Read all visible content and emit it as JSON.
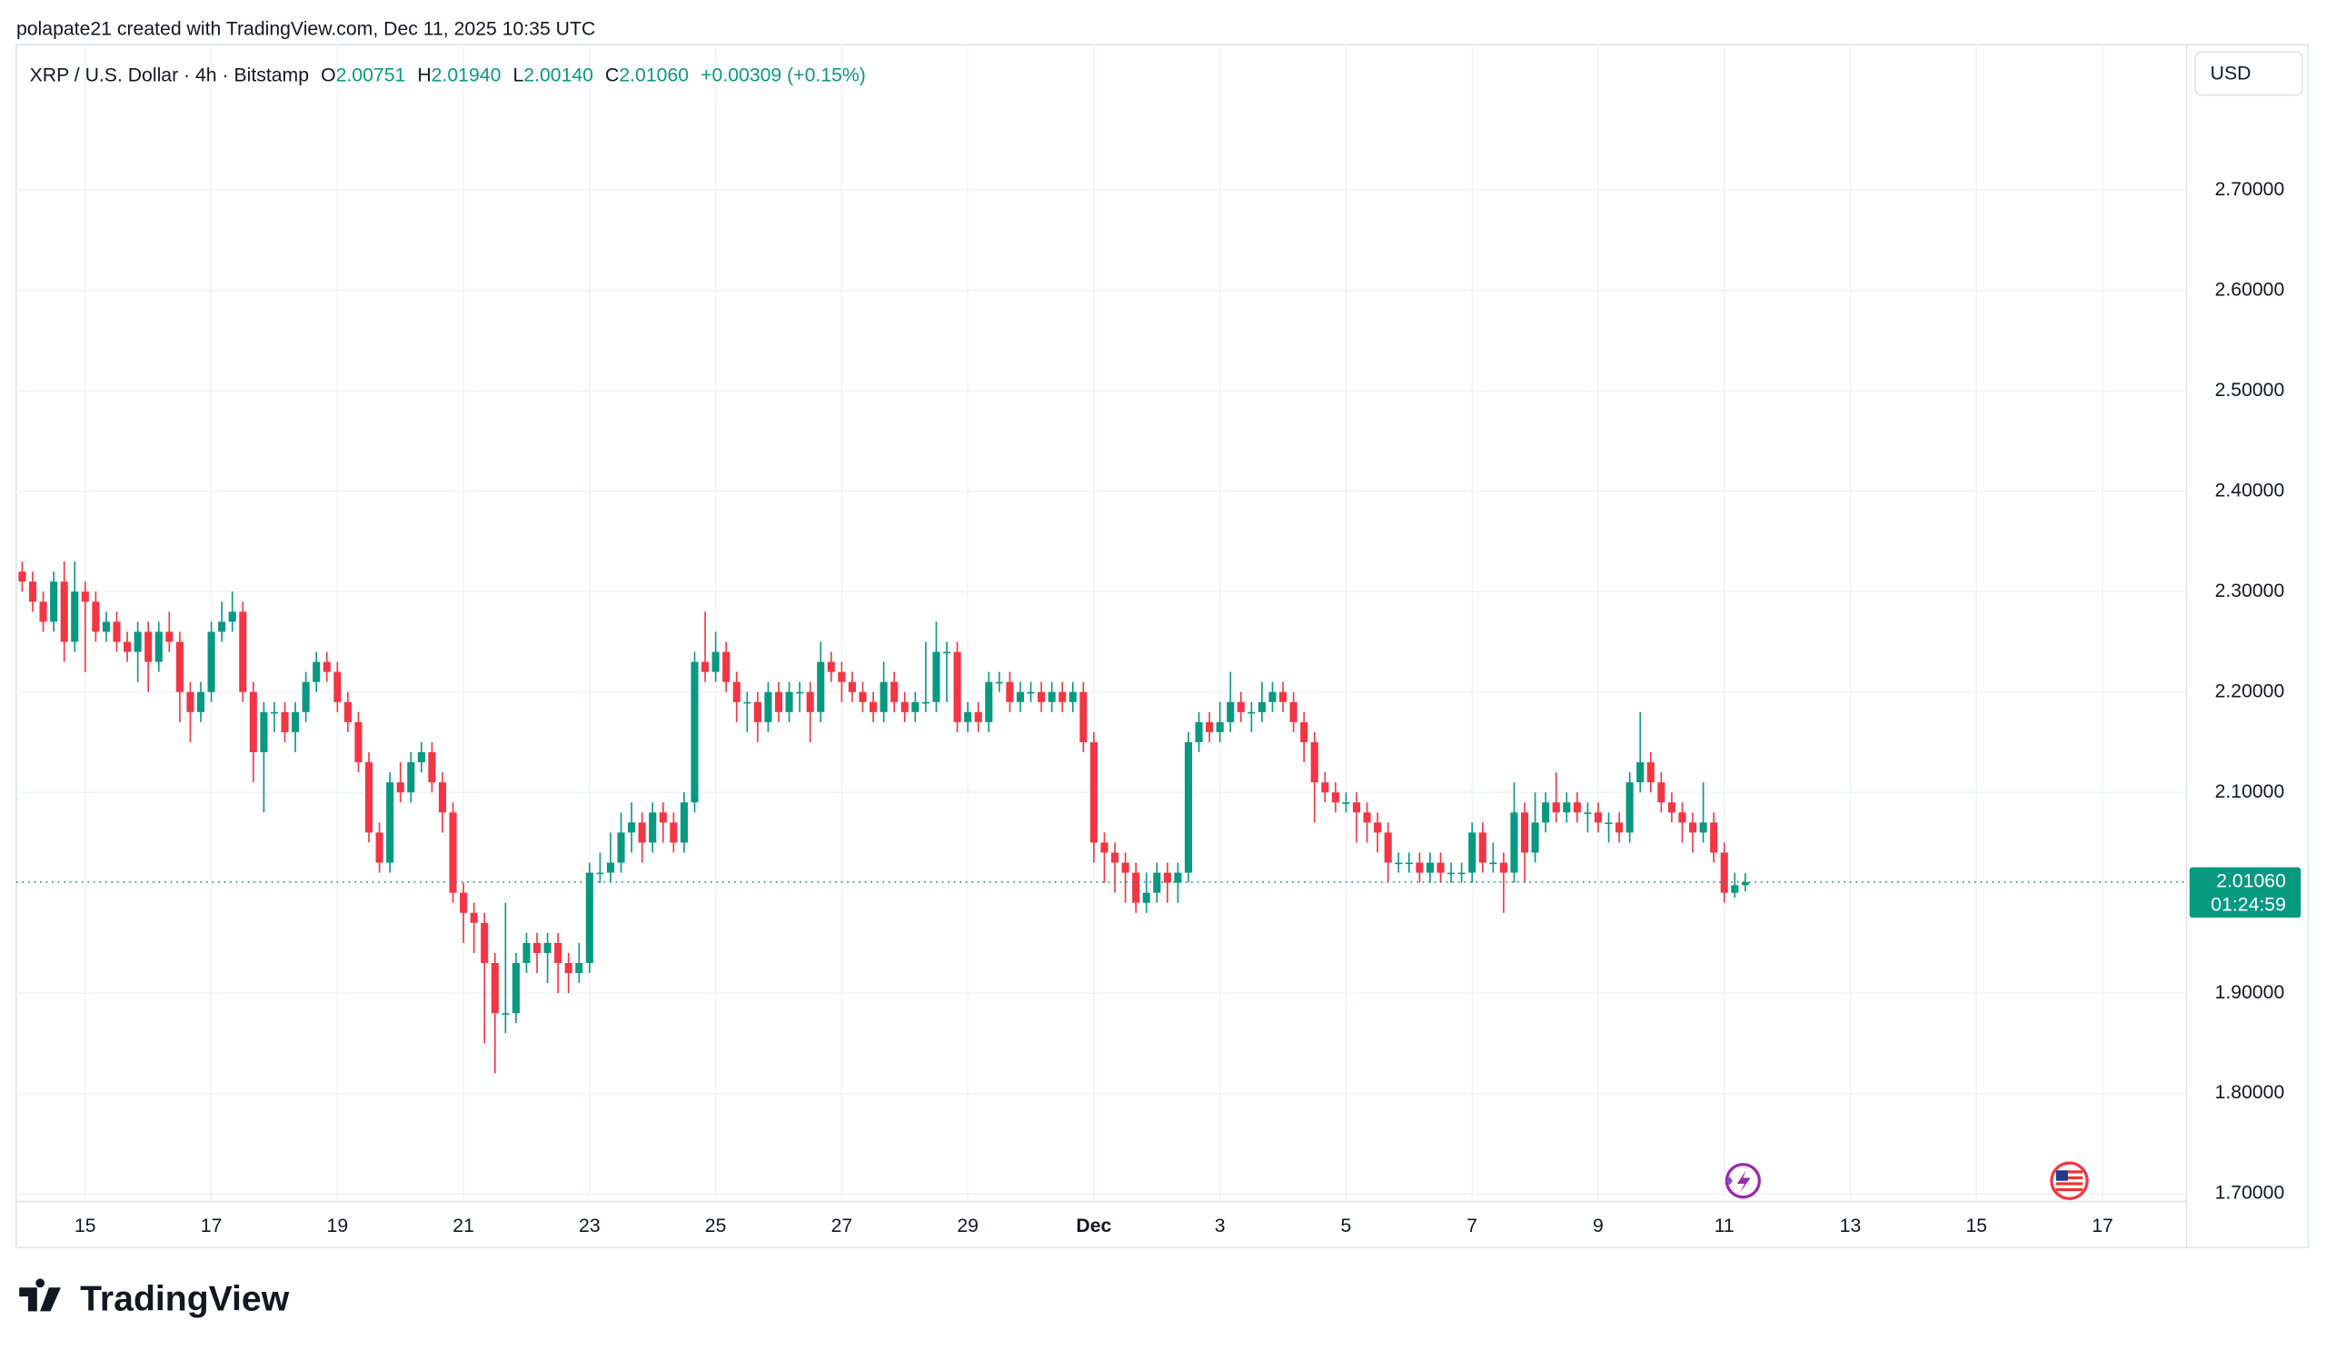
{
  "header": {
    "attribution": "polapate21 created with TradingView.com, Dec 11, 2025 10:35 UTC",
    "logo": "TradingView"
  },
  "chart_data": {
    "type": "candlestick",
    "title": "XRP / U.S. Dollar · 4h · Bitstamp",
    "legend": {
      "open_label": "O",
      "open": "2.00751",
      "high_label": "H",
      "high": "2.01940",
      "low_label": "L",
      "low": "2.00140",
      "close_label": "C",
      "close": "2.01060",
      "change": "+0.00309 (+0.15%)"
    },
    "currency": "USD",
    "open": [
      2.32,
      2.31,
      2.29,
      2.27,
      2.31,
      2.25,
      2.3,
      2.29,
      2.26,
      2.27,
      2.25,
      2.24,
      2.26,
      2.23,
      2.26,
      2.25,
      2.2,
      2.18,
      2.2,
      2.26,
      2.27,
      2.28,
      2.2,
      2.14,
      2.18,
      2.18,
      2.16,
      2.18,
      2.21,
      2.23,
      2.22,
      2.19,
      2.17,
      2.13,
      2.06,
      2.03,
      2.11,
      2.1,
      2.13,
      2.14,
      2.11,
      2.08,
      2.0,
      1.98,
      1.97,
      1.93,
      1.88,
      1.88,
      1.93,
      1.95,
      1.94,
      1.95,
      1.93,
      1.92,
      1.93,
      2.02,
      2.02,
      2.03,
      2.06,
      2.07,
      2.05,
      2.08,
      2.07,
      2.05,
      2.09,
      2.23,
      2.22,
      2.24,
      2.21,
      2.19,
      2.19,
      2.17,
      2.2,
      2.18,
      2.2,
      2.2,
      2.18,
      2.23,
      2.22,
      2.21,
      2.2,
      2.19,
      2.18,
      2.21,
      2.19,
      2.18,
      2.19,
      2.19,
      2.24,
      2.24,
      2.17,
      2.18,
      2.17,
      2.21,
      2.21,
      2.19,
      2.2,
      2.2,
      2.19,
      2.2,
      2.19,
      2.2,
      2.15,
      2.05,
      2.04,
      2.03,
      2.02,
      1.99,
      2.0,
      2.02,
      2.01,
      2.02,
      2.15,
      2.17,
      2.16,
      2.17,
      2.19,
      2.18,
      2.18,
      2.19,
      2.2,
      2.19,
      2.17,
      2.15,
      2.11,
      2.1,
      2.09,
      2.09,
      2.08,
      2.07,
      2.06,
      2.03,
      2.03,
      2.03,
      2.02,
      2.03,
      2.02,
      2.02,
      2.02,
      2.06,
      2.03,
      2.03,
      2.02,
      2.08,
      2.04,
      2.07,
      2.09,
      2.08,
      2.09,
      2.08,
      2.08,
      2.07,
      2.07,
      2.06,
      2.11,
      2.13,
      2.11,
      2.09,
      2.08,
      2.07,
      2.06,
      2.07,
      2.04,
      2.0,
      2.00751
    ],
    "high": [
      2.33,
      2.32,
      2.3,
      2.32,
      2.33,
      2.33,
      2.31,
      2.3,
      2.28,
      2.28,
      2.26,
      2.27,
      2.27,
      2.27,
      2.28,
      2.26,
      2.21,
      2.21,
      2.27,
      2.29,
      2.3,
      2.29,
      2.21,
      2.19,
      2.19,
      2.19,
      2.19,
      2.22,
      2.24,
      2.24,
      2.23,
      2.2,
      2.18,
      2.14,
      2.07,
      2.12,
      2.13,
      2.14,
      2.15,
      2.15,
      2.12,
      2.09,
      2.01,
      1.99,
      1.98,
      1.94,
      1.99,
      1.94,
      1.96,
      1.96,
      1.96,
      1.96,
      1.94,
      1.95,
      2.03,
      2.04,
      2.06,
      2.08,
      2.09,
      2.08,
      2.09,
      2.09,
      2.08,
      2.1,
      2.24,
      2.28,
      2.26,
      2.25,
      2.22,
      2.2,
      2.2,
      2.21,
      2.21,
      2.21,
      2.21,
      2.21,
      2.25,
      2.24,
      2.23,
      2.22,
      2.21,
      2.2,
      2.23,
      2.22,
      2.2,
      2.2,
      2.25,
      2.27,
      2.25,
      2.25,
      2.19,
      2.19,
      2.22,
      2.22,
      2.22,
      2.21,
      2.21,
      2.21,
      2.21,
      2.21,
      2.21,
      2.21,
      2.16,
      2.06,
      2.05,
      2.04,
      2.03,
      2.02,
      2.03,
      2.03,
      2.03,
      2.16,
      2.18,
      2.18,
      2.19,
      2.22,
      2.2,
      2.19,
      2.21,
      2.21,
      2.21,
      2.2,
      2.18,
      2.16,
      2.12,
      2.11,
      2.1,
      2.1,
      2.09,
      2.08,
      2.07,
      2.04,
      2.04,
      2.04,
      2.04,
      2.04,
      2.03,
      2.03,
      2.07,
      2.07,
      2.05,
      2.04,
      2.11,
      2.09,
      2.1,
      2.1,
      2.12,
      2.1,
      2.1,
      2.09,
      2.09,
      2.08,
      2.08,
      2.12,
      2.18,
      2.14,
      2.12,
      2.1,
      2.09,
      2.08,
      2.11,
      2.08,
      2.05,
      2.02,
      2.0194
    ],
    "low": [
      2.3,
      2.28,
      2.26,
      2.26,
      2.23,
      2.24,
      2.22,
      2.25,
      2.25,
      2.24,
      2.23,
      2.21,
      2.2,
      2.22,
      2.24,
      2.17,
      2.15,
      2.17,
      2.19,
      2.25,
      2.26,
      2.19,
      2.11,
      2.08,
      2.16,
      2.15,
      2.14,
      2.17,
      2.2,
      2.21,
      2.18,
      2.16,
      2.12,
      2.05,
      2.02,
      2.02,
      2.09,
      2.09,
      2.12,
      2.1,
      2.06,
      1.99,
      1.95,
      1.94,
      1.85,
      1.82,
      1.86,
      1.87,
      1.92,
      1.92,
      1.91,
      1.9,
      1.9,
      1.91,
      1.92,
      2.01,
      2.01,
      2.02,
      2.04,
      2.03,
      2.04,
      2.05,
      2.04,
      2.04,
      2.08,
      2.21,
      2.21,
      2.2,
      2.17,
      2.16,
      2.15,
      2.16,
      2.17,
      2.17,
      2.18,
      2.15,
      2.17,
      2.21,
      2.19,
      2.19,
      2.18,
      2.17,
      2.17,
      2.18,
      2.17,
      2.17,
      2.18,
      2.18,
      2.19,
      2.16,
      2.16,
      2.16,
      2.16,
      2.2,
      2.18,
      2.18,
      2.19,
      2.18,
      2.18,
      2.18,
      2.18,
      2.14,
      2.03,
      2.01,
      2.0,
      1.99,
      1.98,
      1.98,
      1.99,
      1.99,
      1.99,
      2.01,
      2.14,
      2.15,
      2.15,
      2.16,
      2.17,
      2.16,
      2.17,
      2.18,
      2.18,
      2.16,
      2.13,
      2.07,
      2.09,
      2.08,
      2.08,
      2.05,
      2.05,
      2.04,
      2.01,
      2.02,
      2.02,
      2.01,
      2.01,
      2.01,
      2.01,
      2.01,
      2.01,
      2.02,
      2.02,
      1.98,
      2.01,
      2.01,
      2.03,
      2.06,
      2.07,
      2.07,
      2.07,
      2.06,
      2.06,
      2.05,
      2.05,
      2.05,
      2.1,
      2.1,
      2.08,
      2.07,
      2.05,
      2.04,
      2.05,
      2.03,
      1.99,
      1.995,
      2.0014
    ],
    "close": [
      2.31,
      2.29,
      2.27,
      2.31,
      2.25,
      2.3,
      2.29,
      2.26,
      2.27,
      2.25,
      2.24,
      2.26,
      2.23,
      2.26,
      2.25,
      2.2,
      2.18,
      2.2,
      2.26,
      2.27,
      2.28,
      2.2,
      2.14,
      2.18,
      2.18,
      2.16,
      2.18,
      2.21,
      2.23,
      2.22,
      2.19,
      2.17,
      2.13,
      2.06,
      2.03,
      2.11,
      2.1,
      2.13,
      2.14,
      2.11,
      2.08,
      2.0,
      1.98,
      1.97,
      1.93,
      1.88,
      1.88,
      1.93,
      1.95,
      1.94,
      1.95,
      1.93,
      1.92,
      1.93,
      2.02,
      2.02,
      2.03,
      2.06,
      2.07,
      2.05,
      2.08,
      2.07,
      2.05,
      2.09,
      2.23,
      2.22,
      2.24,
      2.21,
      2.19,
      2.19,
      2.17,
      2.2,
      2.18,
      2.2,
      2.2,
      2.18,
      2.23,
      2.22,
      2.21,
      2.2,
      2.19,
      2.18,
      2.21,
      2.19,
      2.18,
      2.19,
      2.19,
      2.24,
      2.24,
      2.17,
      2.18,
      2.17,
      2.21,
      2.21,
      2.19,
      2.2,
      2.2,
      2.19,
      2.2,
      2.19,
      2.2,
      2.15,
      2.05,
      2.04,
      2.03,
      2.02,
      1.99,
      2.0,
      2.02,
      2.01,
      2.02,
      2.15,
      2.17,
      2.16,
      2.17,
      2.19,
      2.18,
      2.18,
      2.19,
      2.2,
      2.19,
      2.17,
      2.15,
      2.11,
      2.1,
      2.09,
      2.09,
      2.08,
      2.07,
      2.06,
      2.03,
      2.03,
      2.03,
      2.02,
      2.03,
      2.02,
      2.02,
      2.02,
      2.06,
      2.03,
      2.03,
      2.02,
      2.08,
      2.04,
      2.07,
      2.09,
      2.08,
      2.09,
      2.08,
      2.08,
      2.07,
      2.07,
      2.06,
      2.11,
      2.13,
      2.11,
      2.09,
      2.08,
      2.07,
      2.06,
      2.07,
      2.04,
      2.0,
      2.00751,
      2.0106
    ],
    "up_color": "#089981",
    "down_color": "#f23645",
    "xlim": [
      -0.56,
      206
    ],
    "xticks": [
      {
        "value": 6,
        "label": "15"
      },
      {
        "value": 18,
        "label": "17"
      },
      {
        "value": 30,
        "label": "19"
      },
      {
        "value": 42,
        "label": "21"
      },
      {
        "value": 54,
        "label": "23"
      },
      {
        "value": 66,
        "label": "25"
      },
      {
        "value": 78,
        "label": "27"
      },
      {
        "value": 90,
        "label": "29"
      },
      {
        "value": 102,
        "label": "Dec"
      },
      {
        "value": 114,
        "label": "3"
      },
      {
        "value": 126,
        "label": "5"
      },
      {
        "value": 138,
        "label": "7"
      },
      {
        "value": 150,
        "label": "9"
      },
      {
        "value": 162,
        "label": "11"
      },
      {
        "value": 174,
        "label": "13"
      },
      {
        "value": 186,
        "label": "15"
      },
      {
        "value": 198,
        "label": "17"
      }
    ],
    "ylim": [
      1.648,
      2.845
    ],
    "yticks": [
      {
        "value": 1.7,
        "label": "1.70000"
      },
      {
        "value": 1.8,
        "label": "1.80000"
      },
      {
        "value": 1.9,
        "label": "1.90000"
      },
      {
        "value": 2.1,
        "label": "2.10000"
      },
      {
        "value": 2.2,
        "label": "2.20000"
      },
      {
        "value": 2.3,
        "label": "2.30000"
      },
      {
        "value": 2.4,
        "label": "2.40000"
      },
      {
        "value": 2.5,
        "label": "2.50000"
      },
      {
        "value": 2.6,
        "label": "2.60000"
      },
      {
        "value": 2.7,
        "label": "2.70000"
      }
    ],
    "grid": true,
    "last_price": {
      "value": 2.0106,
      "label": "2.01060"
    },
    "countdown": "01:24:59"
  }
}
